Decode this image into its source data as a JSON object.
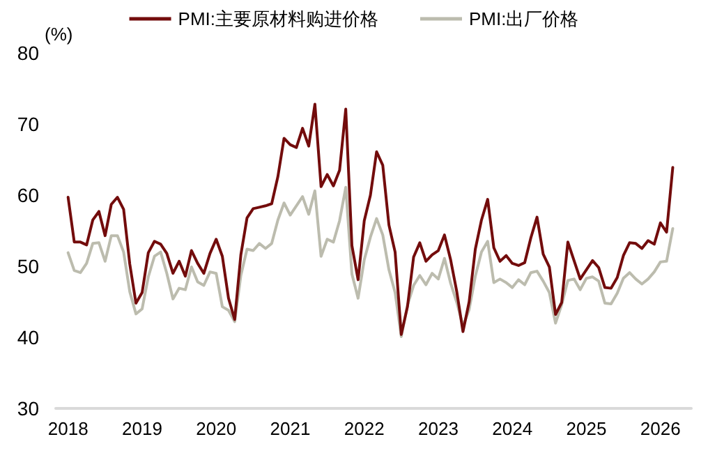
{
  "chart_data": {
    "type": "line",
    "ylabel": "(%)",
    "x": [
      "2018-01",
      "2018-02",
      "2018-03",
      "2018-04",
      "2018-05",
      "2018-06",
      "2018-07",
      "2018-08",
      "2018-09",
      "2018-10",
      "2018-11",
      "2018-12",
      "2019-01",
      "2019-02",
      "2019-03",
      "2019-04",
      "2019-05",
      "2019-06",
      "2019-07",
      "2019-08",
      "2019-09",
      "2019-10",
      "2019-11",
      "2019-12",
      "2020-01",
      "2020-02",
      "2020-03",
      "2020-04",
      "2020-05",
      "2020-06",
      "2020-07",
      "2020-08",
      "2020-09",
      "2020-10",
      "2020-11",
      "2020-12",
      "2021-01",
      "2021-02",
      "2021-03",
      "2021-04",
      "2021-05",
      "2021-06",
      "2021-07",
      "2021-08",
      "2021-09",
      "2021-10",
      "2021-11",
      "2021-12",
      "2022-01",
      "2022-02",
      "2022-03",
      "2022-04",
      "2022-05",
      "2022-06",
      "2022-07",
      "2022-08",
      "2022-09",
      "2022-10",
      "2022-11",
      "2022-12",
      "2023-01",
      "2023-02",
      "2023-03",
      "2023-04",
      "2023-05",
      "2023-06",
      "2023-07",
      "2023-08",
      "2023-09",
      "2023-10",
      "2023-11",
      "2023-12",
      "2024-01",
      "2024-02",
      "2024-03",
      "2024-04",
      "2024-05",
      "2024-06",
      "2024-07",
      "2024-08",
      "2024-09",
      "2024-10",
      "2024-11",
      "2024-12",
      "2025-01",
      "2025-02",
      "2025-03",
      "2025-04",
      "2025-05",
      "2025-06",
      "2025-07",
      "2025-08",
      "2025-09",
      "2025-10",
      "2025-11",
      "2025-12",
      "2026-01",
      "2026-02",
      "2026-03"
    ],
    "series": [
      {
        "name": "PMI:主要原材料购进价格",
        "color": "#730c0c",
        "values": [
          59.7,
          53.4,
          53.4,
          53.0,
          56.5,
          57.7,
          54.3,
          58.7,
          59.7,
          58.0,
          50.3,
          44.8,
          46.3,
          51.9,
          53.5,
          53.1,
          51.8,
          49.0,
          50.7,
          48.6,
          52.2,
          50.4,
          49.0,
          51.8,
          53.8,
          51.4,
          45.5,
          42.5,
          51.6,
          56.8,
          58.1,
          58.3,
          58.5,
          58.8,
          62.6,
          68.0,
          67.1,
          66.7,
          69.4,
          66.9,
          72.8,
          61.2,
          62.9,
          61.3,
          63.5,
          72.1,
          52.9,
          48.1,
          56.4,
          60.0,
          66.1,
          64.2,
          55.8,
          52.0,
          40.4,
          44.3,
          51.3,
          53.3,
          50.7,
          51.6,
          52.2,
          54.4,
          50.9,
          46.4,
          40.8,
          45.0,
          52.4,
          56.5,
          59.4,
          52.6,
          50.7,
          51.5,
          50.4,
          50.1,
          50.5,
          54.0,
          56.9,
          51.7,
          49.9,
          43.2,
          44.9,
          53.4,
          50.8,
          48.2,
          49.5,
          50.8,
          49.8,
          47.0,
          46.9,
          48.4,
          51.5,
          53.3,
          53.2,
          52.5,
          53.6,
          53.1,
          56.1,
          54.8,
          63.9
        ]
      },
      {
        "name": "PMI:出厂价格",
        "color": "#bcbcae",
        "values": [
          51.9,
          49.4,
          49.1,
          50.4,
          53.2,
          53.3,
          50.7,
          54.3,
          54.3,
          52.0,
          46.4,
          43.3,
          44.0,
          48.5,
          51.4,
          52.0,
          49.0,
          45.4,
          46.9,
          46.7,
          49.9,
          47.8,
          47.3,
          49.2,
          49.0,
          44.3,
          43.8,
          42.2,
          48.7,
          52.4,
          52.2,
          53.2,
          52.5,
          53.2,
          56.5,
          58.9,
          57.2,
          58.5,
          59.8,
          57.3,
          60.6,
          51.4,
          53.8,
          53.4,
          56.4,
          61.1,
          48.9,
          45.5,
          50.9,
          54.1,
          56.7,
          54.4,
          49.5,
          46.3,
          40.1,
          44.5,
          47.3,
          48.7,
          47.4,
          49.0,
          48.2,
          51.1,
          47.6,
          44.9,
          41.6,
          43.9,
          48.6,
          52.0,
          53.5,
          47.7,
          48.2,
          47.7,
          47.0,
          48.1,
          47.4,
          49.1,
          49.3,
          47.9,
          46.3,
          42.0,
          44.6,
          48.0,
          48.2,
          46.7,
          48.3,
          48.5,
          47.9,
          44.8,
          44.7,
          46.2,
          48.3,
          49.1,
          48.2,
          47.5,
          48.2,
          49.2,
          50.6,
          50.7,
          55.3
        ]
      }
    ],
    "xlim": [
      "2017-11",
      "2026-06"
    ],
    "xticks": [
      "2018",
      "2019",
      "2020",
      "2021",
      "2022",
      "2023",
      "2024",
      "2025",
      "2026"
    ],
    "ylim": [
      30,
      80
    ],
    "yticks": [
      30,
      40,
      50,
      60,
      70,
      80
    ],
    "grid": false,
    "legend": "top",
    "marker": "none",
    "line_style": "solid"
  }
}
